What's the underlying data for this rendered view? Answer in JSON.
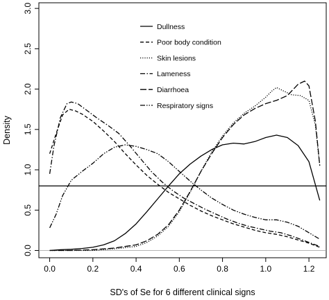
{
  "chart_data": {
    "type": "line",
    "title": "",
    "xlabel": "SD's of Se for 6 different clinical signs",
    "ylabel": "Density",
    "xlim": [
      -0.05,
      1.28
    ],
    "ylim": [
      0.0,
      3.0
    ],
    "x_ticks": [
      0.0,
      0.2,
      0.4,
      0.6,
      0.8,
      1.0,
      1.2
    ],
    "x_tick_labels": [
      "0.0",
      "0.2",
      "0.4",
      "0.6",
      "0.8",
      "1.0",
      "1.2"
    ],
    "y_ticks": [
      0.0,
      0.5,
      1.0,
      1.5,
      2.0,
      2.5,
      3.0
    ],
    "y_tick_labels": [
      "0.0",
      "0.5",
      "1.0",
      "1.5",
      "2.0",
      "2.5",
      "3.0"
    ],
    "grid": false,
    "legend_position": "top-center",
    "reference_lines": [
      {
        "orientation": "horizontal",
        "y": 0.8,
        "style": "solid"
      },
      {
        "orientation": "horizontal",
        "y": 0.0,
        "style": "thin-gray"
      }
    ],
    "series": [
      {
        "name": "Dullness",
        "dash": "solid",
        "points": [
          [
            0.0,
            0.0
          ],
          [
            0.05,
            0.01
          ],
          [
            0.1,
            0.015
          ],
          [
            0.15,
            0.025
          ],
          [
            0.2,
            0.04
          ],
          [
            0.25,
            0.07
          ],
          [
            0.3,
            0.12
          ],
          [
            0.35,
            0.21
          ],
          [
            0.4,
            0.33
          ],
          [
            0.45,
            0.48
          ],
          [
            0.5,
            0.64
          ],
          [
            0.55,
            0.8
          ],
          [
            0.6,
            0.95
          ],
          [
            0.65,
            1.07
          ],
          [
            0.7,
            1.17
          ],
          [
            0.75,
            1.25
          ],
          [
            0.8,
            1.31
          ],
          [
            0.85,
            1.33
          ],
          [
            0.9,
            1.32
          ],
          [
            0.95,
            1.35
          ],
          [
            1.0,
            1.4
          ],
          [
            1.05,
            1.43
          ],
          [
            1.1,
            1.4
          ],
          [
            1.15,
            1.3
          ],
          [
            1.2,
            1.1
          ],
          [
            1.25,
            0.62
          ]
        ]
      },
      {
        "name": "Poor body condition",
        "dash": "dashed",
        "points": [
          [
            0.0,
            1.2
          ],
          [
            0.03,
            1.45
          ],
          [
            0.06,
            1.68
          ],
          [
            0.09,
            1.75
          ],
          [
            0.12,
            1.73
          ],
          [
            0.15,
            1.69
          ],
          [
            0.2,
            1.6
          ],
          [
            0.25,
            1.48
          ],
          [
            0.3,
            1.35
          ],
          [
            0.35,
            1.2
          ],
          [
            0.4,
            1.06
          ],
          [
            0.45,
            0.93
          ],
          [
            0.5,
            0.82
          ],
          [
            0.55,
            0.72
          ],
          [
            0.6,
            0.64
          ],
          [
            0.65,
            0.56
          ],
          [
            0.7,
            0.49
          ],
          [
            0.75,
            0.43
          ],
          [
            0.8,
            0.38
          ],
          [
            0.85,
            0.33
          ],
          [
            0.9,
            0.29
          ],
          [
            0.95,
            0.25
          ],
          [
            1.0,
            0.22
          ],
          [
            1.05,
            0.2
          ],
          [
            1.1,
            0.17
          ],
          [
            1.15,
            0.13
          ],
          [
            1.2,
            0.09
          ],
          [
            1.25,
            0.04
          ]
        ]
      },
      {
        "name": "Skin lesions",
        "dash": "dotted",
        "points": [
          [
            0.0,
            0.0
          ],
          [
            0.1,
            0.0
          ],
          [
            0.2,
            0.0
          ],
          [
            0.3,
            0.02
          ],
          [
            0.4,
            0.05
          ],
          [
            0.45,
            0.1
          ],
          [
            0.5,
            0.18
          ],
          [
            0.55,
            0.3
          ],
          [
            0.6,
            0.48
          ],
          [
            0.65,
            0.72
          ],
          [
            0.7,
            0.98
          ],
          [
            0.75,
            1.22
          ],
          [
            0.8,
            1.42
          ],
          [
            0.85,
            1.58
          ],
          [
            0.9,
            1.7
          ],
          [
            0.95,
            1.79
          ],
          [
            1.0,
            1.9
          ],
          [
            1.03,
            1.98
          ],
          [
            1.05,
            2.02
          ],
          [
            1.08,
            1.98
          ],
          [
            1.12,
            1.93
          ],
          [
            1.16,
            1.92
          ],
          [
            1.2,
            1.86
          ],
          [
            1.23,
            1.55
          ],
          [
            1.25,
            1.05
          ]
        ]
      },
      {
        "name": "Lameness",
        "dash": "dash-dot",
        "points": [
          [
            0.0,
            0.95
          ],
          [
            0.02,
            1.3
          ],
          [
            0.05,
            1.65
          ],
          [
            0.08,
            1.82
          ],
          [
            0.1,
            1.84
          ],
          [
            0.13,
            1.82
          ],
          [
            0.17,
            1.74
          ],
          [
            0.22,
            1.64
          ],
          [
            0.27,
            1.55
          ],
          [
            0.32,
            1.45
          ],
          [
            0.37,
            1.3
          ],
          [
            0.42,
            1.14
          ],
          [
            0.47,
            0.98
          ],
          [
            0.52,
            0.85
          ],
          [
            0.57,
            0.74
          ],
          [
            0.62,
            0.65
          ],
          [
            0.67,
            0.58
          ],
          [
            0.72,
            0.51
          ],
          [
            0.77,
            0.45
          ],
          [
            0.82,
            0.39
          ],
          [
            0.87,
            0.34
          ],
          [
            0.92,
            0.3
          ],
          [
            0.97,
            0.27
          ],
          [
            1.02,
            0.24
          ],
          [
            1.07,
            0.22
          ],
          [
            1.12,
            0.18
          ],
          [
            1.17,
            0.13
          ],
          [
            1.22,
            0.08
          ],
          [
            1.25,
            0.05
          ]
        ]
      },
      {
        "name": "Diarrhoea",
        "dash": "long-dash",
        "points": [
          [
            0.0,
            0.0
          ],
          [
            0.1,
            0.0
          ],
          [
            0.2,
            0.01
          ],
          [
            0.3,
            0.03
          ],
          [
            0.35,
            0.05
          ],
          [
            0.4,
            0.07
          ],
          [
            0.45,
            0.12
          ],
          [
            0.5,
            0.2
          ],
          [
            0.55,
            0.32
          ],
          [
            0.6,
            0.5
          ],
          [
            0.65,
            0.73
          ],
          [
            0.7,
            0.98
          ],
          [
            0.75,
            1.2
          ],
          [
            0.8,
            1.4
          ],
          [
            0.85,
            1.56
          ],
          [
            0.9,
            1.68
          ],
          [
            0.95,
            1.76
          ],
          [
            1.0,
            1.82
          ],
          [
            1.05,
            1.86
          ],
          [
            1.1,
            1.92
          ],
          [
            1.15,
            2.06
          ],
          [
            1.18,
            2.1
          ],
          [
            1.2,
            2.04
          ],
          [
            1.23,
            1.6
          ],
          [
            1.25,
            1.05
          ]
        ]
      },
      {
        "name": "Respiratory signs",
        "dash": "dash-dot-dot",
        "points": [
          [
            0.0,
            0.28
          ],
          [
            0.03,
            0.45
          ],
          [
            0.06,
            0.68
          ],
          [
            0.1,
            0.87
          ],
          [
            0.15,
            0.98
          ],
          [
            0.2,
            1.08
          ],
          [
            0.25,
            1.2
          ],
          [
            0.3,
            1.28
          ],
          [
            0.35,
            1.31
          ],
          [
            0.4,
            1.29
          ],
          [
            0.45,
            1.25
          ],
          [
            0.5,
            1.2
          ],
          [
            0.55,
            1.1
          ],
          [
            0.6,
            0.98
          ],
          [
            0.65,
            0.86
          ],
          [
            0.7,
            0.75
          ],
          [
            0.75,
            0.65
          ],
          [
            0.8,
            0.57
          ],
          [
            0.85,
            0.5
          ],
          [
            0.9,
            0.45
          ],
          [
            0.95,
            0.41
          ],
          [
            1.0,
            0.38
          ],
          [
            1.05,
            0.38
          ],
          [
            1.1,
            0.35
          ],
          [
            1.15,
            0.3
          ],
          [
            1.2,
            0.22
          ],
          [
            1.25,
            0.14
          ]
        ]
      }
    ]
  }
}
